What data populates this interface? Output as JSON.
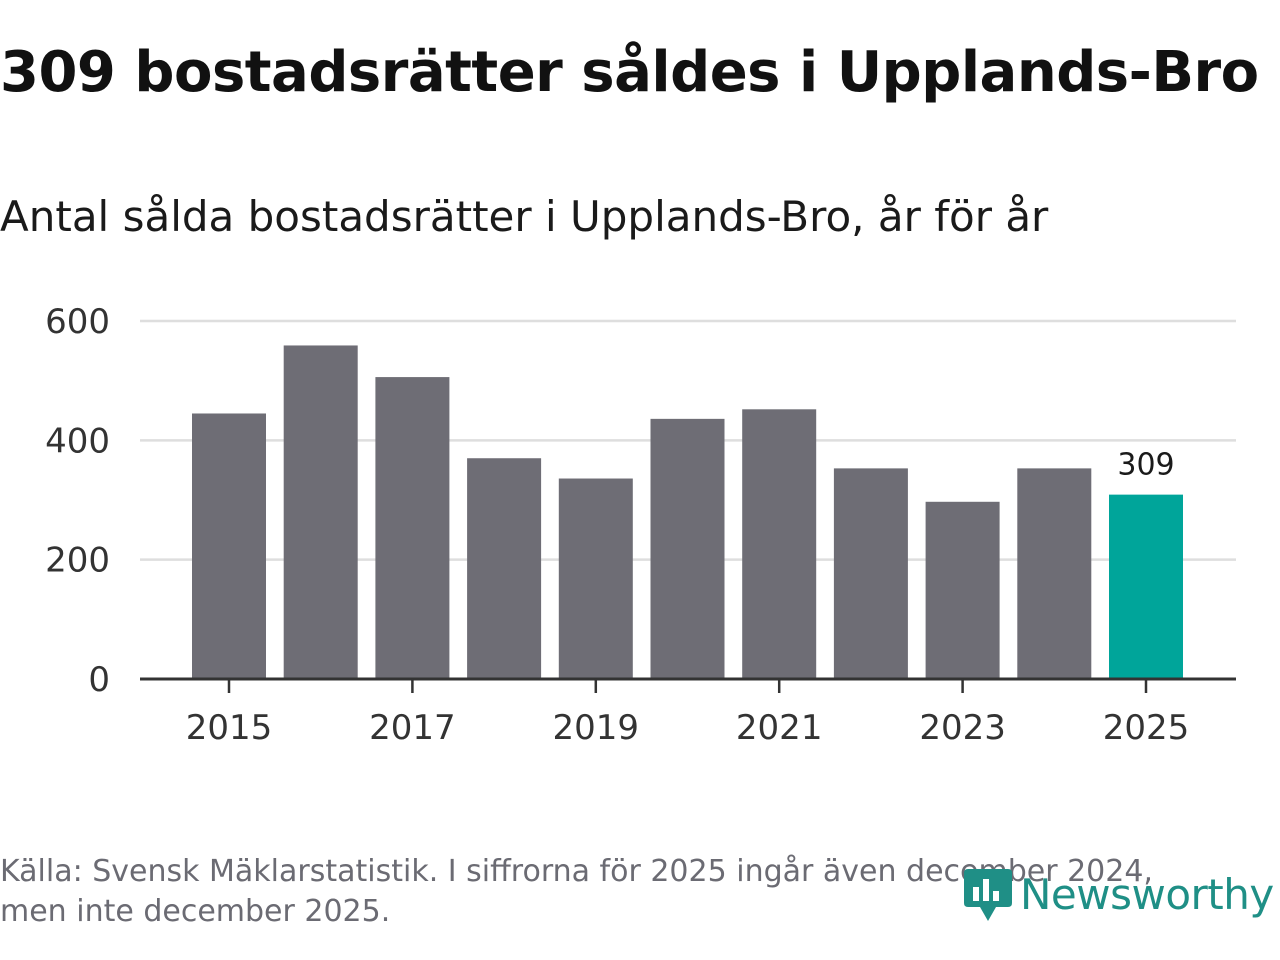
{
  "chart_data": {
    "type": "bar",
    "title": "309 bostadsrätter såldes i Upplands-Bro",
    "subtitle": "Antal sålda bostadsrätter i Upplands-Bro, år för år",
    "xlabel": "",
    "ylabel": "",
    "ylim": [
      0,
      600
    ],
    "yticks": [
      0,
      200,
      400,
      600
    ],
    "xtick_years": [
      2015,
      2017,
      2019,
      2021,
      2023,
      2025
    ],
    "categories": [
      "2015",
      "2016",
      "2017",
      "2018",
      "2019",
      "2020",
      "2021",
      "2022",
      "2023",
      "2024",
      "2025"
    ],
    "values": [
      445,
      559,
      506,
      370,
      336,
      436,
      452,
      353,
      297,
      353,
      309
    ],
    "highlight": {
      "category": "2025",
      "label": "309"
    },
    "grid": true,
    "colors": {
      "bar": "#6e6d75",
      "highlight": "#00a59a",
      "grid": "#dedede",
      "axis": "#333333"
    }
  },
  "footer": {
    "source": "Källa: Svensk Mäklarstatistik. I siffrorna för 2025 ingår även december 2024, men inte december 2025.",
    "logo_text": "Newsworthy",
    "logo_icon": "newsworthy-chart-bubble-icon",
    "logo_color": "#1f8f86"
  }
}
